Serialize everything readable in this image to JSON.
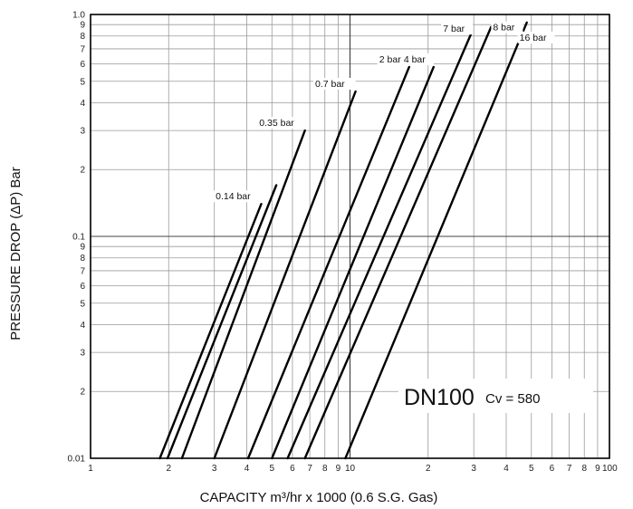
{
  "chart_data": {
    "type": "line",
    "title": "DN100",
    "subtitle": "Cv = 580",
    "xlabel": "CAPACITY m³/hr x 1000 (0.6 S.G. Gas)",
    "ylabel": "PRESSURE DROP (ΔP) Bar",
    "x_scale": "log",
    "y_scale": "log",
    "xlim": [
      1,
      100
    ],
    "ylim": [
      0.01,
      1.0
    ],
    "grid": true,
    "x_tick_labels": [
      {
        "v": 1,
        "t": "1"
      },
      {
        "v": 2,
        "t": "2"
      },
      {
        "v": 3,
        "t": "3"
      },
      {
        "v": 4,
        "t": "4"
      },
      {
        "v": 5,
        "t": "5"
      },
      {
        "v": 6,
        "t": "6"
      },
      {
        "v": 7,
        "t": "7"
      },
      {
        "v": 8,
        "t": "8"
      },
      {
        "v": 9,
        "t": "9"
      },
      {
        "v": 10,
        "t": "10"
      },
      {
        "v": 20,
        "t": "2"
      },
      {
        "v": 30,
        "t": "3"
      },
      {
        "v": 40,
        "t": "4"
      },
      {
        "v": 50,
        "t": "5"
      },
      {
        "v": 60,
        "t": "6"
      },
      {
        "v": 70,
        "t": "7"
      },
      {
        "v": 80,
        "t": "8"
      },
      {
        "v": 90,
        "t": "9"
      },
      {
        "v": 100,
        "t": "100"
      }
    ],
    "y_tick_labels": [
      {
        "v": 0.01,
        "t": "0.01"
      },
      {
        "v": 0.02,
        "t": "2"
      },
      {
        "v": 0.03,
        "t": "3"
      },
      {
        "v": 0.04,
        "t": "4"
      },
      {
        "v": 0.05,
        "t": "5"
      },
      {
        "v": 0.06,
        "t": "6"
      },
      {
        "v": 0.07,
        "t": "7"
      },
      {
        "v": 0.08,
        "t": "8"
      },
      {
        "v": 0.09,
        "t": "9"
      },
      {
        "v": 0.1,
        "t": "0.1"
      },
      {
        "v": 0.2,
        "t": "2"
      },
      {
        "v": 0.3,
        "t": "3"
      },
      {
        "v": 0.4,
        "t": "4"
      },
      {
        "v": 0.5,
        "t": "5"
      },
      {
        "v": 0.6,
        "t": "6"
      },
      {
        "v": 0.7,
        "t": "7"
      },
      {
        "v": 0.8,
        "t": "8"
      },
      {
        "v": 0.9,
        "t": "9"
      },
      {
        "v": 1.0,
        "t": "1.0"
      }
    ],
    "series": [
      {
        "name": "0.14 bar",
        "points": [
          [
            1.85,
            0.01
          ],
          [
            4.55,
            0.14
          ]
        ]
      },
      {
        "name": "",
        "points": [
          [
            1.98,
            0.01
          ],
          [
            5.2,
            0.17
          ]
        ]
      },
      {
        "name": "0.35 bar",
        "points": [
          [
            2.25,
            0.01
          ],
          [
            6.7,
            0.3
          ]
        ]
      },
      {
        "name": "0.7 bar",
        "points": [
          [
            3.0,
            0.01
          ],
          [
            10.5,
            0.45
          ]
        ]
      },
      {
        "name": "2 bar",
        "points": [
          [
            4.05,
            0.01
          ],
          [
            16.9,
            0.58
          ]
        ]
      },
      {
        "name": "4 bar",
        "points": [
          [
            5.0,
            0.01
          ],
          [
            21.0,
            0.58
          ]
        ]
      },
      {
        "name": "7 bar",
        "points": [
          [
            5.75,
            0.01
          ],
          [
            29.3,
            0.82
          ]
        ]
      },
      {
        "name": "8 bar",
        "points": [
          [
            6.7,
            0.01
          ],
          [
            35.0,
            0.88
          ]
        ]
      },
      {
        "name": "16 bar",
        "points": [
          [
            9.6,
            0.01
          ],
          [
            48.0,
            0.92
          ]
        ]
      }
    ]
  }
}
